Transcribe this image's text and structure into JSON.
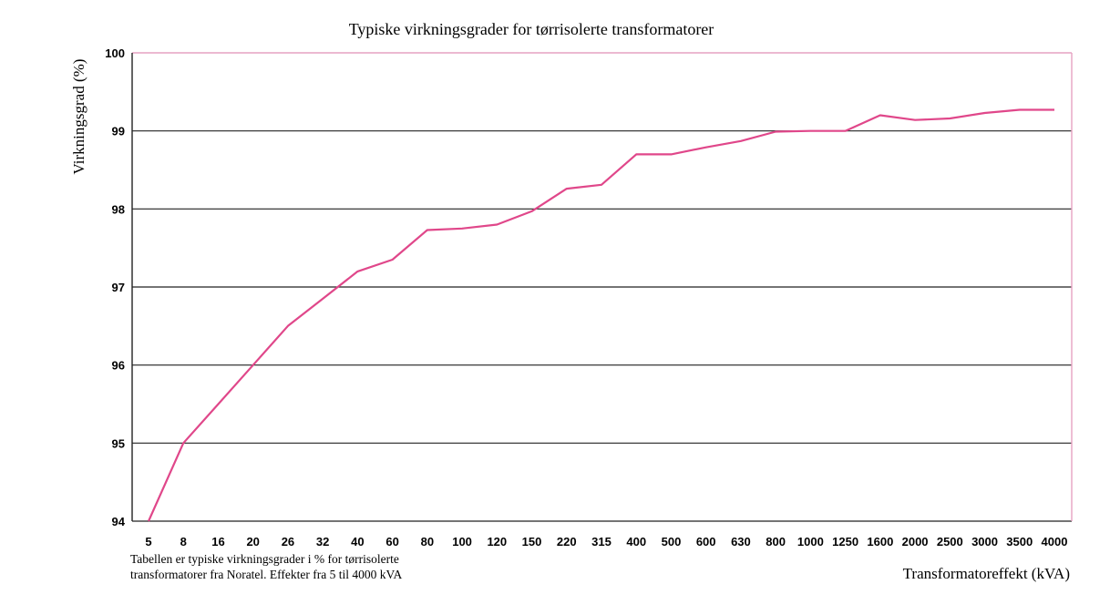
{
  "chart_data": {
    "type": "line",
    "title": "Typiske virkningsgrader for tørrisolerte transformatorer",
    "xlabel": "Transformatoreffekt (kVA)",
    "ylabel": "Virkningsgrad (%)",
    "ylim": [
      94,
      100
    ],
    "yticks": [
      "94",
      "95",
      "96",
      "97",
      "98",
      "99",
      "100"
    ],
    "grid": "horizontal",
    "categories": [
      "5",
      "8",
      "16",
      "20",
      "26",
      "32",
      "40",
      "60",
      "80",
      "100",
      "120",
      "150",
      "220",
      "315",
      "400",
      "500",
      "600",
      "630",
      "800",
      "1000",
      "1250",
      "1600",
      "2000",
      "2500",
      "3000",
      "3500",
      "4000"
    ],
    "series": [
      {
        "values": [
          94.0,
          95.0,
          95.5,
          96.0,
          96.5,
          96.85,
          97.2,
          97.35,
          97.73,
          97.75,
          97.8,
          97.97,
          98.26,
          98.31,
          98.7,
          98.7,
          98.79,
          98.87,
          98.99,
          99.0,
          99.0,
          99.2,
          99.14,
          99.16,
          99.23,
          99.27,
          99.27
        ],
        "color": "#e0478a"
      }
    ]
  },
  "note": {
    "line1": "Tabellen er typiske virkningsgrader i % for tørrisolerte",
    "line2": "transformatorer fra Noratel.  Effekter fra 5 til 4000 kVA"
  }
}
